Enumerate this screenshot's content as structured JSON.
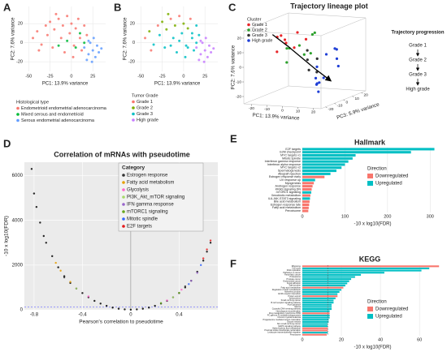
{
  "chart_data": [
    {
      "type": "scatter",
      "panel": "A",
      "xlabel": "PC1: 13.9% variance",
      "ylabel": "PC2: 7.6% variance",
      "xlim": [
        -55,
        40
      ],
      "ylim": [
        -30,
        38
      ],
      "xticks": [
        -50,
        -25,
        0,
        25
      ],
      "yticks": [
        -20,
        0,
        20
      ],
      "grid": true,
      "legend_title": "Histological type",
      "series": [
        {
          "name": "Endometrioid endometrial adenocarcinoma",
          "color": "#f8766d",
          "x": [
            -45,
            -40,
            -35,
            -30,
            -28,
            -25,
            -22,
            -20,
            -15,
            -12,
            -10,
            -8,
            -5,
            -2,
            0,
            3,
            5,
            8,
            10,
            12,
            15,
            -38,
            -18,
            2,
            18
          ],
          "values": [
            5,
            12,
            -2,
            18,
            8,
            22,
            -5,
            14,
            25,
            5,
            18,
            -10,
            28,
            10,
            20,
            -3,
            15,
            25,
            5,
            -8,
            18,
            -8,
            30,
            -15,
            8
          ]
        },
        {
          "name": "Mixed serous and endometrioid",
          "color": "#00ba38",
          "x": [
            -5,
            5,
            10,
            15,
            -15
          ],
          "values": [
            2,
            -5,
            10,
            0,
            -3
          ]
        },
        {
          "name": "Serous endometrial adenocarcinoma",
          "color": "#619cff",
          "x": [
            15,
            20,
            22,
            25,
            28,
            30,
            18,
            24,
            32,
            26,
            20,
            35
          ],
          "values": [
            -5,
            -12,
            0,
            -8,
            -15,
            -3,
            -18,
            -20,
            -10,
            5,
            2,
            -6
          ]
        }
      ]
    },
    {
      "type": "scatter",
      "panel": "B",
      "xlabel": "PC1: 13.9% variance",
      "ylabel": "PC2: 7.6% variance",
      "xlim": [
        -55,
        40
      ],
      "ylim": [
        -30,
        38
      ],
      "xticks": [
        -50,
        -25,
        0,
        25
      ],
      "yticks": [
        -20,
        0,
        20
      ],
      "grid": true,
      "legend_title": "Tumor Grade",
      "series": [
        {
          "name": "Grade 1",
          "color": "#f8766d",
          "x": [
            -45,
            -30,
            -15,
            -5,
            8,
            -38
          ],
          "values": [
            5,
            18,
            25,
            28,
            25,
            -8
          ]
        },
        {
          "name": "Grade 2",
          "color": "#7cae00",
          "x": [
            -40,
            -25,
            -10,
            0,
            5,
            -20,
            -18
          ],
          "values": [
            12,
            22,
            18,
            20,
            15,
            14,
            30
          ]
        },
        {
          "name": "Grade 3",
          "color": "#00bfc4",
          "x": [
            -35,
            -28,
            -22,
            -12,
            -8,
            -2,
            3,
            10,
            12,
            15,
            2,
            18,
            -5,
            15,
            -15,
            10,
            5
          ],
          "values": [
            -2,
            8,
            -5,
            5,
            -10,
            10,
            -3,
            5,
            -8,
            18,
            -15,
            8,
            2,
            0,
            -3,
            10,
            -5
          ]
        },
        {
          "name": "High grade",
          "color": "#c77cff",
          "x": [
            15,
            20,
            22,
            25,
            28,
            30,
            18,
            24,
            32,
            26,
            20,
            35
          ],
          "values": [
            -5,
            -12,
            0,
            -8,
            -15,
            -3,
            -18,
            -20,
            -10,
            5,
            2,
            -6
          ]
        }
      ]
    },
    {
      "type": "scatter3d",
      "panel": "C",
      "title": "Trajectory lineage plot",
      "xlabel": "PC1: 13.9% variance",
      "ylabel": "PC2: 7.6% variance",
      "zlabel": "PC3: 5.9% variance",
      "xlim": [
        -25,
        25
      ],
      "ylim": [
        -25,
        25
      ],
      "zlim": [
        -25,
        25
      ],
      "xticks": [
        -20,
        -10,
        0,
        10,
        20
      ],
      "yticks": [
        -20,
        -10,
        0,
        10,
        20
      ],
      "zticks": [
        -20,
        -10,
        0,
        10,
        20
      ],
      "legend_title": "Cluster",
      "series": [
        {
          "name": "Grade 1",
          "color": "#e8262a",
          "x": [
            -15,
            -10,
            -18,
            -5,
            -12,
            -8,
            -20,
            -3
          ],
          "values": [
            10,
            15,
            5,
            12,
            18,
            8,
            14,
            20
          ],
          "z": [
            5,
            -5,
            0,
            10,
            -10,
            2,
            8,
            -3
          ]
        },
        {
          "name": "Grade 2",
          "color": "#2ca02c",
          "x": [
            -10,
            -5,
            0,
            -14,
            -2,
            5,
            -7,
            3
          ],
          "values": [
            8,
            2,
            12,
            -3,
            15,
            6,
            10,
            18
          ],
          "z": [
            0,
            8,
            -6,
            4,
            12,
            -2,
            -8,
            6
          ]
        },
        {
          "name": "Grade 3",
          "color": "#333333",
          "x": [
            0,
            5,
            -3,
            8,
            2
          ],
          "values": [
            0,
            -5,
            5,
            2,
            -10
          ],
          "z": [
            3,
            -4,
            8,
            0,
            10
          ]
        },
        {
          "name": "High grade",
          "color": "#1f3fd6",
          "x": [
            5,
            10,
            15,
            8,
            12,
            18,
            3,
            20,
            14,
            7,
            10,
            16
          ],
          "values": [
            -5,
            -10,
            0,
            -15,
            5,
            -8,
            -18,
            -3,
            -12,
            2,
            -20,
            8
          ],
          "z": [
            5,
            -5,
            10,
            0,
            15,
            -10,
            8,
            3,
            -8,
            12,
            -2,
            6
          ]
        }
      ],
      "trajectory": {
        "x": [
          -18,
          -10,
          -2,
          6,
          14
        ],
        "y": [
          18,
          10,
          2,
          -6,
          -14
        ],
        "z": [
          -5,
          -2,
          0,
          2,
          5
        ]
      },
      "progression": {
        "title": "Trajectory progression",
        "steps": [
          "Grade 1",
          "Grade 2",
          "Grade 3",
          "High grade"
        ]
      }
    },
    {
      "type": "scatter",
      "panel": "D",
      "title": "Correlation of mRNAs with pseudotime",
      "xlabel": "Pearson's correlation to pseudotime",
      "ylabel": "-10 x log10(FDR)",
      "xlim": [
        -0.88,
        0.72
      ],
      "ylim": [
        0,
        6600
      ],
      "xticks": [
        -0.8,
        -0.4,
        0,
        0.4
      ],
      "yticks": [
        0,
        2000,
        4000,
        6000
      ],
      "grid": true,
      "background": "#ebebeb",
      "hline": 130,
      "vline": 0,
      "legend_title": "Category",
      "legend_text_colored": true,
      "series": [
        {
          "color": "#000000",
          "x": [
            -0.82,
            -0.8,
            -0.78,
            -0.75,
            -0.72,
            -0.7,
            -0.65,
            -0.6,
            -0.55,
            -0.5,
            -0.45,
            -0.4,
            -0.35,
            -0.3,
            -0.25,
            -0.2,
            -0.15,
            -0.1,
            -0.05,
            0,
            0.05,
            0.1,
            0.15,
            0.2,
            0.25,
            0.3,
            0.35,
            0.4,
            0.45,
            0.5,
            0.55,
            0.6,
            0.63,
            0.66
          ],
          "values": [
            6300,
            5200,
            4600,
            3900,
            3300,
            3000,
            2400,
            1900,
            1500,
            1200,
            950,
            750,
            560,
            400,
            280,
            180,
            100,
            50,
            20,
            5,
            20,
            50,
            100,
            180,
            280,
            400,
            560,
            750,
            1000,
            1300,
            1700,
            2200,
            2600,
            3000
          ]
        },
        {
          "name": "Estrogen response",
          "color": "#333333",
          "x": [
            -0.55,
            0.45
          ],
          "values": [
            1450,
            1050
          ]
        },
        {
          "name": "Fatty acid metabolism",
          "color": "#e69f00",
          "x": [
            -0.62,
            -0.58,
            -0.5
          ],
          "values": [
            2100,
            1750,
            1250
          ]
        },
        {
          "name": "Glycolysis",
          "color": "#ff66cc",
          "x": [
            -0.35,
            0.3,
            0.42
          ],
          "values": [
            600,
            420,
            900
          ]
        },
        {
          "name": "PI3K_Akt_mTOR signaling",
          "color": "#a6d96a",
          "x": [
            -0.45,
            0.35
          ],
          "values": [
            950,
            560
          ]
        },
        {
          "name": "IFN gamma response",
          "color": "#9966cc",
          "x": [
            0.5,
            0.55
          ],
          "values": [
            1300,
            1650
          ]
        },
        {
          "name": "mTORC1 signaling",
          "color": "#66a61e",
          "x": [
            0.25,
            0.4
          ],
          "values": [
            300,
            760
          ]
        },
        {
          "name": "Mitotic spindle",
          "color": "#3366ff",
          "x": [
            0.48,
            0.58
          ],
          "values": [
            1150,
            2000
          ]
        },
        {
          "name": "E2F targets",
          "color": "#e41a1c",
          "x": [
            0.6,
            0.63,
            0.66
          ],
          "values": [
            2300,
            2700,
            3100
          ]
        }
      ]
    },
    {
      "type": "barh",
      "panel": "E",
      "title": "Hallmark",
      "xlabel": "-10 x log10(FDR)",
      "xlim": [
        0,
        330
      ],
      "xticks": [
        0,
        100,
        200,
        300
      ],
      "grid": true,
      "legend_title": "Direction",
      "categories": [
        "E2F targets",
        "G2M checkpoint",
        "MYC targets v1",
        "Mitotic spindle",
        "Interferon gamma response",
        "Interferon alpha response",
        "MYC targets v2",
        "Spermatogenesis",
        "Allograft rejection",
        "Estrogen response early",
        "UV response up",
        "Myogenesis",
        "Androgen response",
        "KRAS signaling DN",
        "mTORC1 signaling",
        "Xenobiotic metabolism",
        "IL6-JAK-STAT3 signaling",
        "Bile acid metabolism",
        "Estrogen response late",
        "Fatty acid metabolism",
        "Peroxisome"
      ],
      "series": [
        {
          "name": "Downregulated",
          "color": "#f8766d",
          "values": [
            null,
            null,
            null,
            null,
            null,
            null,
            null,
            null,
            null,
            52,
            null,
            27,
            24,
            22,
            null,
            19,
            null,
            17,
            16,
            15,
            14
          ]
        },
        {
          "name": "Upregulated",
          "color": "#00bfc4",
          "values": [
            310,
            255,
            125,
            118,
            108,
            100,
            92,
            80,
            66,
            null,
            30,
            null,
            null,
            null,
            21,
            null,
            18,
            null,
            null,
            null,
            null
          ]
        }
      ]
    },
    {
      "type": "barh",
      "panel": "F",
      "title": "KEGG",
      "xlabel": "-10 x log10(FDR)",
      "xlim": [
        0,
        72
      ],
      "xticks": [
        0,
        20,
        40,
        60
      ],
      "grid": true,
      "legend_title": "Direction",
      "reference_line": 13,
      "categories": [
        "Ribosome",
        "Cell cycle",
        "DNA replication",
        "Pathways in cancer",
        "Pancreatic cancer",
        "Proteasome",
        "Prostate cancer",
        "Endometrial cancer",
        "Focal adhesion",
        "Tight junction",
        "Fatty acid metabolism",
        "Regulation of actin cytoskeleton",
        "Adherens junction",
        "ECM receptor interaction",
        "Protein export",
        "Spliceosome",
        "Small cell lung cancer",
        "B cell receptor signaling pathway",
        "Axon guidance",
        "Glioma",
        "Cytosolic DNA sensing pathway",
        "Homologous recombination",
        "Drug metabolism cytochrome P450",
        "FC gamma R mediated phagocytosis",
        "Chronic myeloid leukemia",
        "Progesterone mediated oocyte maturation",
        "Oocyte meiosis",
        "Non small cell lung cancer",
        "MAPK signaling pathway",
        "Alpha linolenic acid metabolism",
        "Proximal tubule bicarbonate reclamation",
        "Leukocyte transendothelial migration",
        "Peroxisome"
      ],
      "series": [
        {
          "name": "Downregulated",
          "color": "#f8766d",
          "values": [
            70,
            null,
            null,
            null,
            null,
            null,
            null,
            null,
            null,
            null,
            21,
            null,
            null,
            null,
            18,
            null,
            null,
            null,
            null,
            null,
            null,
            null,
            14,
            null,
            null,
            null,
            null,
            null,
            null,
            13,
            13,
            null,
            12.5
          ]
        },
        {
          "name": "Upregulated",
          "color": "#00bfc4",
          "values": [
            null,
            65,
            61,
            42,
            30,
            27,
            25,
            24,
            23,
            22,
            null,
            20,
            19,
            18,
            null,
            17,
            16,
            16,
            15,
            15,
            15,
            14,
            null,
            14,
            14,
            13.5,
            13.5,
            13,
            13,
            null,
            null,
            13,
            null
          ]
        }
      ]
    }
  ]
}
